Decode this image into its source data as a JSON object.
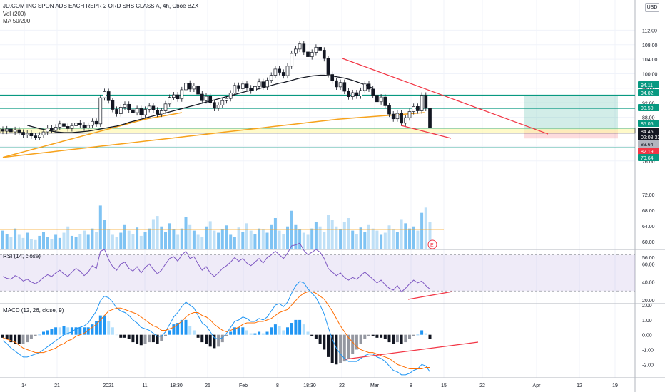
{
  "header": {
    "symbol_line": "JD.COM INC SPON ADS EACH REPR 2 ORD SHS CLASS A, 4h, Cboe BZX",
    "vol_line": "Vol (200)",
    "ma_line": "MA 50/200",
    "currency_badge": "USD"
  },
  "chart_data": [
    {
      "type": "candlestick",
      "title": "JD.COM INC SPON ADS EACH REPR 2 ORD SHS CLASS A, 4h, Cboe BZX",
      "ylim": [
        74,
        116
      ],
      "y_ticks": [
        "112.00",
        "108.00",
        "104.00",
        "100.00",
        "96.00",
        "92.00",
        "88.00",
        "80.00",
        "76.00"
      ],
      "price_close": [
        84.2,
        84.8,
        84.0,
        84.6,
        83.9,
        83.2,
        83.6,
        82.9,
        82.5,
        83.1,
        84.0,
        85.0,
        84.4,
        85.3,
        86.2,
        85.5,
        84.9,
        85.7,
        86.4,
        85.9,
        85.1,
        85.8,
        86.9,
        86.2,
        93.4,
        95.1,
        92.6,
        90.2,
        89.0,
        90.8,
        91.6,
        90.1,
        89.3,
        90.4,
        88.7,
        90.2,
        91.1,
        90.0,
        88.9,
        89.8,
        91.7,
        93.5,
        94.2,
        93.1,
        95.6,
        97.4,
        95.8,
        96.7,
        94.4,
        92.6,
        93.8,
        92.1,
        90.5,
        91.4,
        92.6,
        93.2,
        94.7,
        96.8,
        95.9,
        97.2,
        96.1,
        95.3,
        96.5,
        97.8,
        96.4,
        98.2,
        99.6,
        101.3,
        100.4,
        99.5,
        102.1,
        105.6,
        106.8,
        108.2,
        106.0,
        104.7,
        105.9,
        107.3,
        106.5,
        104.2,
        99.8,
        98.1,
        96.4,
        97.6,
        95.2,
        93.7,
        94.8,
        93.9,
        95.4,
        97.2,
        95.8,
        94.1,
        92.3,
        93.6,
        91.2,
        88.9,
        87.6,
        89.1,
        86.4,
        87.9,
        89.6,
        91.0,
        89.8,
        94.1,
        90.5,
        85.2
      ],
      "ma50": [
        85.8,
        85.5,
        85.2,
        84.9,
        84.7,
        84.4,
        84.2,
        84.0,
        83.9,
        83.8,
        83.8,
        83.8,
        83.9,
        84.0,
        84.1,
        84.2,
        84.4,
        84.6,
        84.8,
        85.0,
        85.2,
        85.4,
        85.6,
        85.9,
        86.2,
        86.6,
        86.9,
        87.2,
        87.5,
        87.8,
        88.1,
        88.4,
        88.7,
        89.0,
        89.2,
        89.5,
        89.8,
        90.1,
        90.4,
        90.7,
        91.0,
        91.3,
        91.6,
        91.9,
        92.2,
        92.5,
        92.8,
        93.1,
        93.4,
        93.7,
        94.0,
        94.3,
        94.6,
        94.9,
        95.2,
        95.4,
        95.6,
        95.9,
        96.2,
        96.5,
        96.8,
        97.1,
        97.4,
        97.6,
        97.9,
        98.2,
        98.5,
        98.8,
        99.0,
        99.2,
        99.4,
        99.5,
        99.6,
        99.6,
        99.5,
        99.4,
        99.2,
        99.0,
        98.8,
        98.5,
        98.2,
        97.8,
        97.4,
        97.0,
        96.5,
        96.0
      ],
      "ma200": [
        77.0,
        77.3,
        77.6,
        77.9,
        78.2,
        78.5,
        78.8,
        79.1,
        79.4,
        79.7,
        80.0,
        80.3,
        80.6,
        80.9,
        81.2,
        81.5,
        81.8,
        82.1,
        82.4,
        82.7,
        83.0,
        83.3,
        83.6,
        83.9,
        84.2,
        84.5,
        84.8,
        85.1,
        85.4,
        85.7,
        86.0,
        86.3,
        86.6,
        86.9,
        87.2,
        87.5,
        87.7,
        87.9,
        88.1,
        88.3,
        88.5,
        88.7,
        88.9,
        89.1,
        89.3
      ],
      "horizontal_levels": [
        94.11,
        94.02,
        90.5,
        85.05,
        84.45,
        83.64,
        82.19,
        79.64
      ],
      "price_labels": [
        {
          "value": "94.11",
          "color": "#089981"
        },
        {
          "value": "94.02",
          "color": "#089981"
        },
        {
          "value": "90.50",
          "color": "#089981"
        },
        {
          "value": "85.05",
          "color": "#089981"
        },
        {
          "value": "84.45",
          "color": "#131722"
        },
        {
          "value": "02:08:33",
          "color": "#131722"
        },
        {
          "value": "83.64",
          "color": "#b2b5be"
        },
        {
          "value": "82.19",
          "color": "#f23645"
        },
        {
          "value": "79.64",
          "color": "#089981"
        }
      ],
      "ma_colors": {
        "ma50": "#131722",
        "ma200": "#f7a21b"
      },
      "grid": true
    },
    {
      "type": "bar",
      "title": "Vol (200)",
      "values": [
        18,
        15,
        12,
        20,
        14,
        11,
        16,
        10,
        9,
        13,
        17,
        12,
        10,
        14,
        11,
        16,
        22,
        13,
        12,
        15,
        18,
        14,
        20,
        17,
        42,
        28,
        19,
        14,
        12,
        16,
        24,
        18,
        15,
        21,
        13,
        17,
        20,
        29,
        32,
        22,
        17,
        25,
        19,
        14,
        20,
        31,
        24,
        18,
        14,
        12,
        22,
        27,
        18,
        16,
        19,
        23,
        14,
        12,
        21,
        17,
        25,
        18,
        15,
        20,
        19,
        16,
        24,
        30,
        18,
        15,
        22,
        37,
        24,
        19,
        16,
        14,
        20,
        26,
        22,
        17,
        33,
        28,
        22,
        19,
        26,
        30,
        18,
        15,
        21,
        17,
        24,
        20,
        18,
        14,
        16,
        23,
        19,
        17,
        29,
        25,
        20,
        22,
        18,
        35,
        40,
        26
      ],
      "ylim": [
        0,
        60
      ],
      "y_ticks": [
        "72.00",
        "68.00",
        "64.00",
        "60.00",
        "56.00"
      ],
      "event_marker": "E"
    },
    {
      "type": "line",
      "title": "RSI (14, close)",
      "values": [
        46,
        44,
        43,
        47,
        45,
        41,
        43,
        40,
        38,
        41,
        45,
        48,
        46,
        50,
        53,
        49,
        46,
        51,
        55,
        52,
        47,
        51,
        58,
        55,
        74,
        76,
        65,
        57,
        53,
        60,
        62,
        55,
        52,
        57,
        50,
        56,
        60,
        54,
        49,
        53,
        60,
        66,
        68,
        63,
        70,
        74,
        66,
        68,
        60,
        53,
        57,
        50,
        46,
        50,
        55,
        58,
        62,
        67,
        63,
        66,
        61,
        58,
        62,
        66,
        61,
        67,
        70,
        74,
        70,
        66,
        72,
        80,
        81,
        83,
        75,
        70,
        73,
        76,
        73,
        66,
        55,
        51,
        47,
        50,
        45,
        42,
        45,
        43,
        47,
        51,
        47,
        43,
        39,
        42,
        37,
        33,
        31,
        36,
        29,
        33,
        38,
        42,
        39,
        41,
        36,
        32
      ],
      "ylim": [
        16,
        76
      ],
      "y_ticks": [
        "60.00",
        "40.00",
        "20.00"
      ],
      "bands": [
        70,
        30
      ]
    },
    {
      "type": "line",
      "title": "MACD (12, 26, close, 9)",
      "macd": [
        -0.4,
        -0.6,
        -0.9,
        -1.1,
        -1.3,
        -1.5,
        -1.5,
        -1.4,
        -1.3,
        -1.2,
        -1.0,
        -0.8,
        -0.6,
        -0.4,
        -0.2,
        0.0,
        0.1,
        0.2,
        0.4,
        0.5,
        0.6,
        0.8,
        1.2,
        1.6,
        2.3,
        2.6,
        2.5,
        2.2,
        1.8,
        1.6,
        1.5,
        1.3,
        1.0,
        0.8,
        0.5,
        0.4,
        0.3,
        0.1,
        -0.1,
        -0.1,
        0.2,
        0.7,
        1.2,
        1.5,
        1.9,
        2.2,
        2.0,
        1.8,
        1.3,
        0.8,
        0.6,
        0.2,
        -0.2,
        -0.3,
        -0.2,
        0.1,
        0.5,
        0.9,
        1.0,
        1.2,
        1.1,
        0.9,
        0.9,
        1.1,
        1.0,
        1.2,
        1.6,
        2.0,
        2.1,
        1.9,
        2.2,
        2.8,
        3.3,
        3.6,
        3.5,
        3.1,
        2.8,
        2.5,
        2.0,
        1.4,
        0.5,
        -0.3,
        -0.9,
        -1.3,
        -1.6,
        -1.8,
        -1.8,
        -1.8,
        -1.6,
        -1.4,
        -1.3,
        -1.3,
        -1.5,
        -1.6,
        -1.8,
        -2.1,
        -2.4,
        -2.5,
        -2.7,
        -2.7,
        -2.6,
        -2.4,
        -2.3,
        -2.0,
        -2.1,
        -2.5
      ],
      "signal": [
        -0.2,
        -0.3,
        -0.4,
        -0.5,
        -0.7,
        -0.9,
        -1.0,
        -1.1,
        -1.2,
        -1.2,
        -1.2,
        -1.1,
        -1.0,
        -0.9,
        -0.7,
        -0.6,
        -0.4,
        -0.3,
        -0.1,
        0.0,
        0.1,
        0.3,
        0.5,
        0.7,
        1.0,
        1.3,
        1.6,
        1.7,
        1.8,
        1.8,
        1.7,
        1.6,
        1.5,
        1.4,
        1.2,
        1.0,
        0.8,
        0.6,
        0.5,
        0.3,
        0.3,
        0.4,
        0.5,
        0.7,
        0.9,
        1.2,
        1.4,
        1.5,
        1.5,
        1.3,
        1.2,
        1.0,
        0.7,
        0.5,
        0.3,
        0.2,
        0.3,
        0.4,
        0.5,
        0.7,
        0.8,
        0.8,
        0.8,
        0.9,
        0.9,
        1.0,
        1.1,
        1.3,
        1.5,
        1.6,
        1.7,
        2.0,
        2.3,
        2.6,
        2.8,
        2.9,
        2.9,
        2.8,
        2.6,
        2.4,
        2.0,
        1.6,
        1.1,
        0.6,
        0.2,
        -0.2,
        -0.5,
        -0.8,
        -1.0,
        -1.1,
        -1.2,
        -1.2,
        -1.3,
        -1.4,
        -1.5,
        -1.6,
        -1.8,
        -2.0,
        -2.1,
        -2.2,
        -2.3,
        -2.3,
        -2.3,
        -2.3,
        -2.2,
        -2.2
      ],
      "ylim": [
        -2.9,
        2.1
      ],
      "y_ticks": [
        "2.00",
        "1.00",
        "0.00",
        "-1.00",
        "-2.00"
      ],
      "colors": {
        "macd": "#2196f3",
        "signal": "#ff6d00",
        "hist_pos_strong": "#2196f3",
        "hist_pos_weak": "#b2dffc",
        "hist_neg_strong": "#131722",
        "hist_neg_weak": "#9598a1"
      }
    }
  ],
  "x_axis": {
    "ticks": [
      "14",
      "21",
      "2021",
      "11",
      "18:30",
      "25",
      "Feb",
      "8",
      "18:30",
      "22",
      "Mar",
      "8",
      "15",
      "22",
      "Apr",
      "12",
      "19"
    ]
  }
}
